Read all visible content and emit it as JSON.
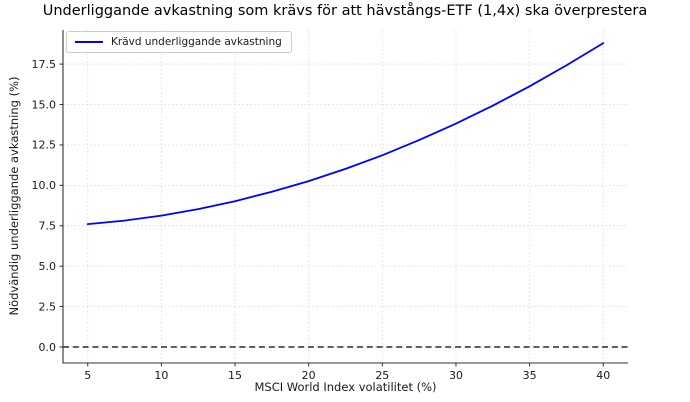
{
  "figure": {
    "background": "#ffffff",
    "text_color": "#1a1a1a"
  },
  "chart_data": {
    "type": "line",
    "title": "Underliggande avkastning som krävs för att hävstångs-ETF (1,4x) ska överprestera",
    "xlabel": "MSCI World Index volatilitet (%)",
    "ylabel": "Nödvändig underliggande avkastning (%)",
    "legend": {
      "entries": [
        "Krävd underliggande avkastning"
      ],
      "position": "upper left"
    },
    "grid": true,
    "xlim": [
      3.32,
      41.68
    ],
    "ylim": [
      -0.99,
      19.61
    ],
    "x_ticks": [
      5,
      10,
      15,
      20,
      25,
      30,
      35,
      40
    ],
    "x_tick_labels": [
      "5",
      "10",
      "15",
      "20",
      "25",
      "30",
      "35",
      "40"
    ],
    "y_ticks": [
      0,
      2.5,
      5,
      7.5,
      10,
      12.5,
      15,
      17.5
    ],
    "y_tick_labels": [
      "0.0",
      "2.5",
      "5.0",
      "7.5",
      "10.0",
      "12.5",
      "15.0",
      "17.5"
    ],
    "series": [
      {
        "name": "Krävd underliggande avkastning",
        "color": "#0000ff",
        "line_width": 1.8,
        "x": [
          5,
          7.5,
          10,
          12.5,
          15,
          17.5,
          20,
          22.5,
          25,
          27.5,
          30,
          32.5,
          35,
          37.5,
          40
        ],
        "y": [
          7.6,
          7.82,
          8.13,
          8.53,
          9.02,
          9.6,
          10.26,
          11.02,
          11.86,
          12.8,
          13.82,
          14.93,
          16.13,
          17.42,
          18.8
        ]
      }
    ],
    "reference_line": {
      "y": 0,
      "color": "#000000",
      "style": "dashed"
    },
    "colors": {
      "grid": "#d9d9d9",
      "spine": "#333333",
      "tick_label": "#1a1a1a"
    }
  }
}
